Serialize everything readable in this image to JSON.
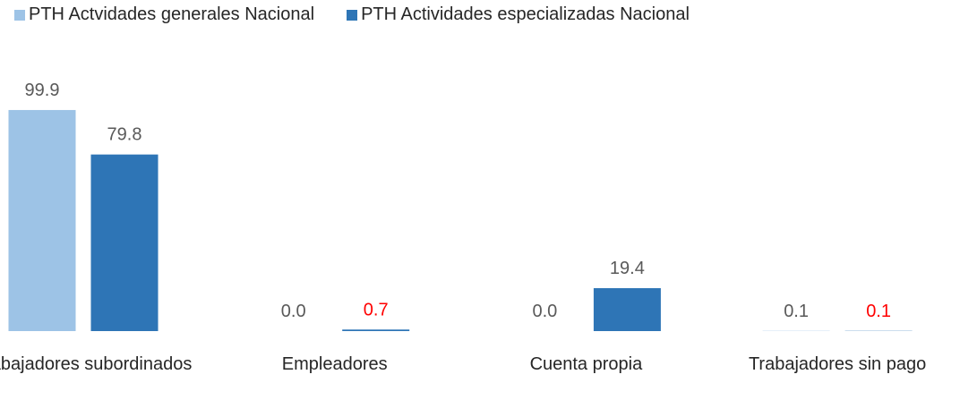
{
  "chart_data": {
    "type": "bar",
    "categories": [
      "Trabajadores subordinados",
      "Empleadores",
      "Cuenta propia",
      "Trabajadores sin pago"
    ],
    "series": [
      {
        "name": "PTH Actvidades generales Nacional",
        "color": "#9dc3e6",
        "values": [
          99.9,
          0.0,
          0.0,
          0.1
        ],
        "value_labels": [
          "99.9",
          "0.0",
          "0.0",
          "0.1"
        ],
        "value_label_colors": [
          "#595959",
          "#595959",
          "#595959",
          "#595959"
        ]
      },
      {
        "name": "PTH Actividades especializadas Nacional",
        "color": "#2e75b6",
        "values": [
          79.8,
          0.7,
          19.4,
          0.1
        ],
        "value_labels": [
          "79.8",
          "0.7",
          "19.4",
          "0.1"
        ],
        "value_label_colors": [
          "#595959",
          "#ff0000",
          "#595959",
          "#ff0000"
        ]
      }
    ],
    "ylim": [
      0,
      100
    ],
    "legend": "top"
  }
}
